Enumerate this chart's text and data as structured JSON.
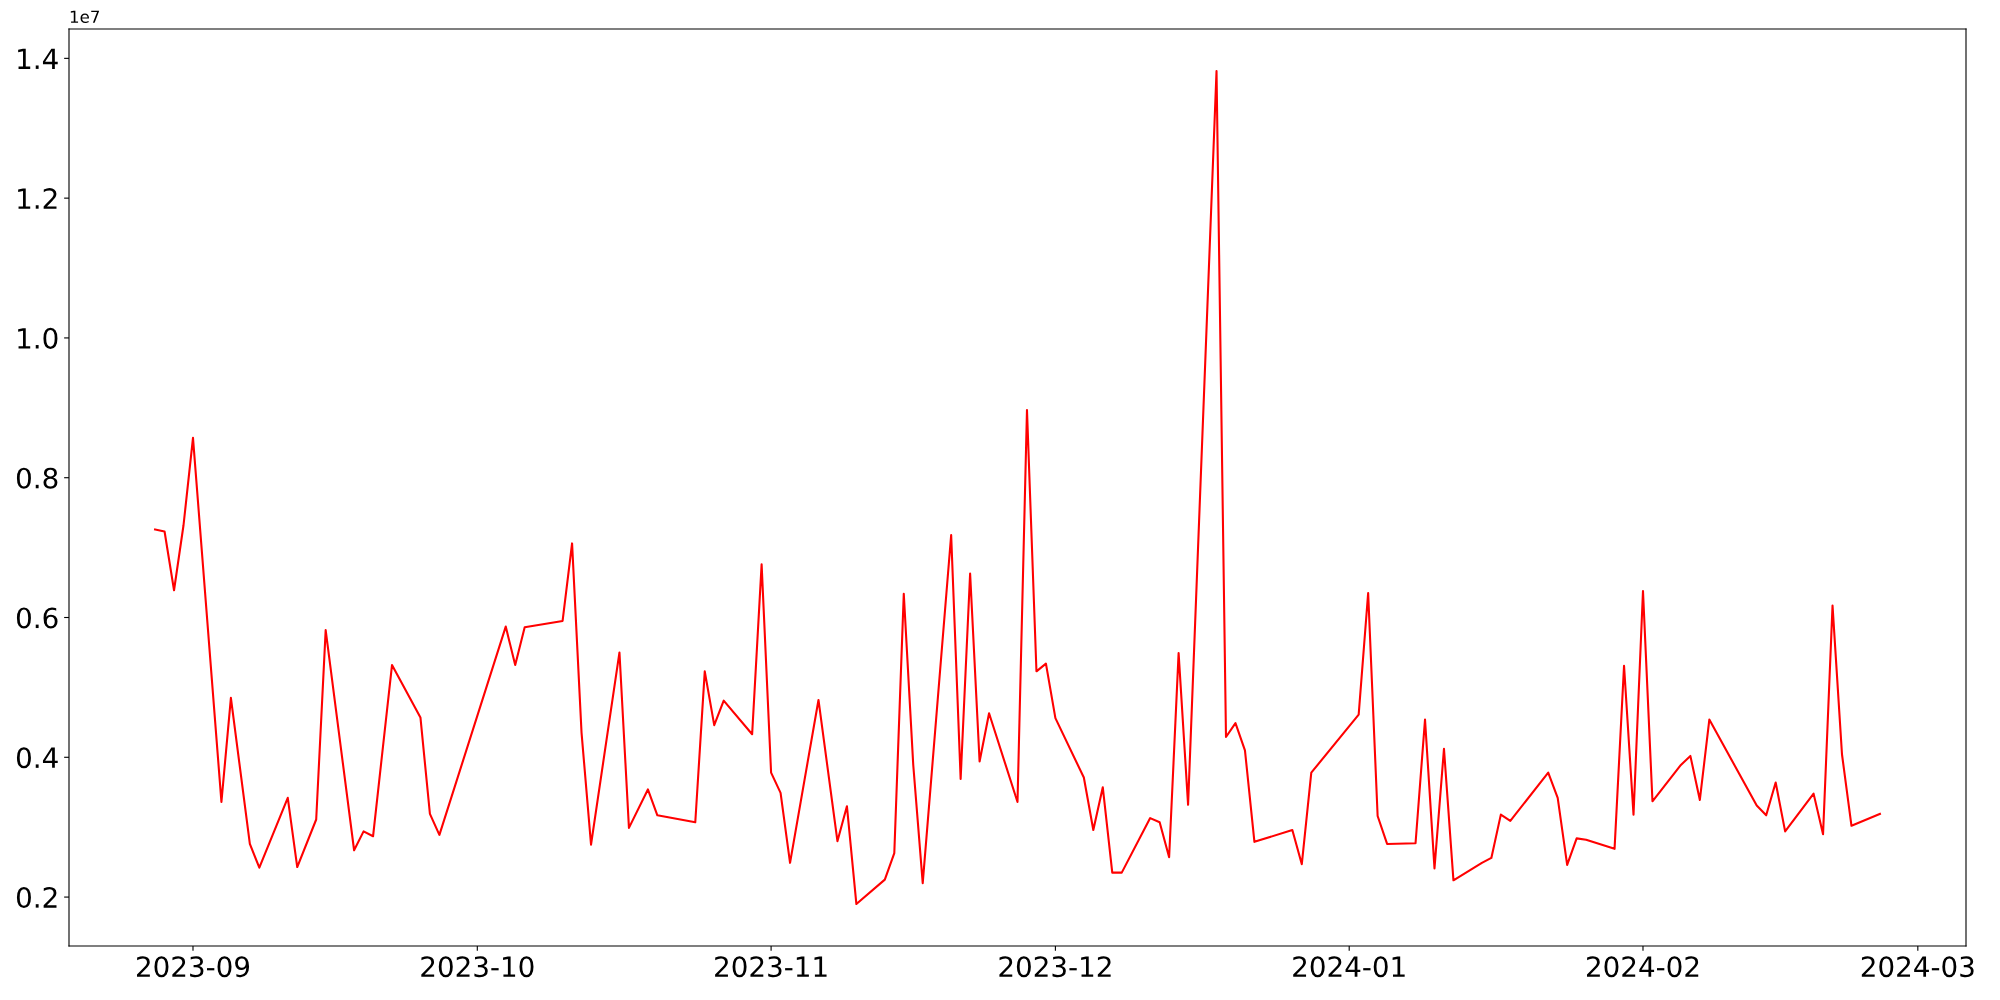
{
  "chart_data": {
    "type": "line",
    "annotations": [
      "1e7"
    ],
    "x": [
      "2023-08-28",
      "2023-08-29",
      "2023-08-30",
      "2023-08-31",
      "2023-09-01",
      "2023-09-04",
      "2023-09-05",
      "2023-09-07",
      "2023-09-08",
      "2023-09-11",
      "2023-09-12",
      "2023-09-14",
      "2023-09-15",
      "2023-09-18",
      "2023-09-19",
      "2023-09-20",
      "2023-09-22",
      "2023-09-25",
      "2023-09-26",
      "2023-09-27",
      "2023-10-04",
      "2023-10-05",
      "2023-10-06",
      "2023-10-10",
      "2023-10-11",
      "2023-10-12",
      "2023-10-13",
      "2023-10-16",
      "2023-10-17",
      "2023-10-19",
      "2023-10-20",
      "2023-10-24",
      "2023-10-25",
      "2023-10-26",
      "2023-10-27",
      "2023-10-30",
      "2023-10-31",
      "2023-11-01",
      "2023-11-02",
      "2023-11-03",
      "2023-11-06",
      "2023-11-08",
      "2023-11-09",
      "2023-11-10",
      "2023-11-13",
      "2023-11-14",
      "2023-11-15",
      "2023-11-16",
      "2023-11-17",
      "2023-11-20",
      "2023-11-21",
      "2023-11-22",
      "2023-11-23",
      "2023-11-24",
      "2023-11-27",
      "2023-11-28",
      "2023-11-29",
      "2023-11-30",
      "2023-12-01",
      "2023-12-04",
      "2023-12-05",
      "2023-12-06",
      "2023-12-07",
      "2023-12-08",
      "2023-12-11",
      "2023-12-12",
      "2023-12-13",
      "2023-12-14",
      "2023-12-15",
      "2023-12-18",
      "2023-12-19",
      "2023-12-20",
      "2023-12-21",
      "2023-12-22",
      "2023-12-26",
      "2023-12-27",
      "2023-12-28",
      "2024-01-02",
      "2024-01-03",
      "2024-01-04",
      "2024-01-05",
      "2024-01-08",
      "2024-01-09",
      "2024-01-10",
      "2024-01-11",
      "2024-01-12",
      "2024-01-15",
      "2024-01-16",
      "2024-01-17",
      "2024-01-18",
      "2024-01-22",
      "2024-01-23",
      "2024-01-24",
      "2024-01-25",
      "2024-01-26",
      "2024-01-29",
      "2024-01-30",
      "2024-01-31",
      "2024-02-01",
      "2024-02-02",
      "2024-02-05",
      "2024-02-06",
      "2024-02-07",
      "2024-02-08",
      "2024-02-13",
      "2024-02-14",
      "2024-02-15",
      "2024-02-16",
      "2024-02-19",
      "2024-02-20",
      "2024-02-21",
      "2024-02-22",
      "2024-02-23",
      "2024-02-26"
    ],
    "series": [
      {
        "color": "#ff0000",
        "values": [
          0.726,
          0.723,
          0.639,
          0.732,
          0.857,
          0.336,
          0.485,
          0.276,
          0.242,
          0.342,
          0.243,
          0.311,
          0.582,
          0.267,
          0.294,
          0.287,
          0.532,
          0.457,
          0.319,
          0.289,
          0.587,
          0.532,
          0.586,
          0.595,
          0.706,
          0.435,
          0.275,
          0.55,
          0.299,
          0.354,
          0.317,
          0.307,
          0.523,
          0.446,
          0.481,
          0.433,
          0.676,
          0.378,
          0.349,
          0.249,
          0.482,
          0.28,
          0.33,
          0.19,
          0.225,
          0.263,
          0.634,
          0.389,
          0.22,
          0.718,
          0.369,
          0.663,
          0.394,
          0.463,
          0.336,
          0.897,
          0.523,
          0.534,
          0.456,
          0.371,
          0.296,
          0.357,
          0.235,
          0.235,
          0.313,
          0.307,
          0.257,
          0.549,
          0.332,
          1.382,
          0.429,
          0.449,
          0.41,
          0.279,
          0.296,
          0.247,
          0.378,
          0.461,
          0.635,
          0.316,
          0.276,
          0.277,
          0.454,
          0.241,
          0.412,
          0.224,
          0.249,
          0.256,
          0.318,
          0.309,
          0.378,
          0.342,
          0.246,
          0.284,
          0.282,
          0.269,
          0.531,
          0.318,
          0.638,
          0.337,
          0.389,
          0.402,
          0.339,
          0.454,
          0.331,
          0.317,
          0.364,
          0.294,
          0.348,
          0.29,
          0.617,
          0.404,
          0.302,
          0.319
        ]
      }
    ],
    "xlim": [
      "2023-08-18T22:00",
      "2024-03-06T02:00"
    ],
    "xticks": [
      {
        "value": "2023-09-01",
        "label": "2023-09"
      },
      {
        "value": "2023-10-01",
        "label": "2023-10"
      },
      {
        "value": "2023-11-01",
        "label": "2023-11"
      },
      {
        "value": "2023-12-01",
        "label": "2023-12"
      },
      {
        "value": "2024-01-01",
        "label": "2024-01"
      },
      {
        "value": "2024-02-01",
        "label": "2024-02"
      },
      {
        "value": "2024-03-01",
        "label": "2024-03"
      }
    ],
    "ylim": [
      0.13,
      1.442
    ],
    "yticks": [
      {
        "value": 0.2,
        "label": "0.2"
      },
      {
        "value": 0.4,
        "label": "0.4"
      },
      {
        "value": 0.6,
        "label": "0.6"
      },
      {
        "value": 0.8,
        "label": "0.8"
      },
      {
        "value": 1.0,
        "label": "1.0"
      },
      {
        "value": 1.2,
        "label": "1.2"
      },
      {
        "value": 1.4,
        "label": "1.4"
      }
    ],
    "grid": false,
    "marker": "none",
    "line_style": "solid"
  }
}
